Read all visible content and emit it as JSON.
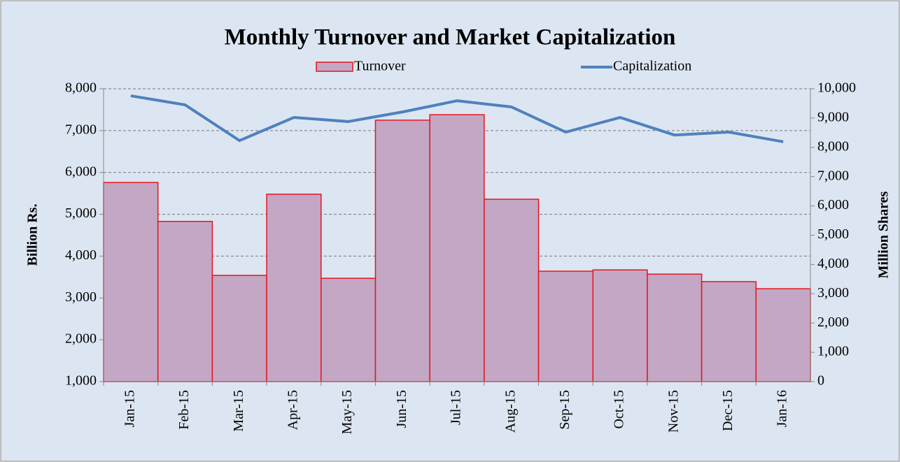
{
  "chart_data": {
    "type": "bar-line",
    "title": "Monthly Turnover and Market Capitalization",
    "y_label": "Billion Rs.",
    "y2_label": "Million Shares",
    "categories": [
      "Jan-15",
      "Feb-15",
      "Mar-15",
      "Apr-15",
      "May-15",
      "Jun-15",
      "Jul-15",
      "Aug-15",
      "Sep-15",
      "Oct-15",
      "Nov-15",
      "Dec-15",
      "Jan-16"
    ],
    "series": [
      {
        "name": "Turnover",
        "type": "bar",
        "color": "#c3a7c5",
        "edge_color": "#e8141c",
        "values": [
          5760,
          4830,
          3540,
          5480,
          3470,
          7250,
          7380,
          5360,
          3640,
          3670,
          3570,
          3390,
          3220
        ]
      },
      {
        "name": "Capitalization",
        "type": "line",
        "axis": "y2",
        "color": "#4f81bd",
        "values": [
          9760,
          9450,
          8230,
          9020,
          8880,
          9210,
          9590,
          9380,
          8520,
          9020,
          8420,
          8520,
          8190
        ]
      }
    ],
    "ylim": [
      1000,
      8000
    ],
    "yticks": [
      {
        "value": 1000,
        "label": "1,000"
      },
      {
        "value": 2000,
        "label": "2,000"
      },
      {
        "value": 3000,
        "label": "3,000"
      },
      {
        "value": 4000,
        "label": "4,000"
      },
      {
        "value": 5000,
        "label": "5,000"
      },
      {
        "value": 6000,
        "label": "6,000"
      },
      {
        "value": 7000,
        "label": "7,000"
      },
      {
        "value": 8000,
        "label": "8,000"
      }
    ],
    "y2lim": [
      0,
      10000
    ],
    "y2ticks": [
      0,
      {
        "value": 1000,
        "label": "1,000"
      },
      {
        "value": 2000,
        "label": "2,000"
      },
      {
        "value": 3000,
        "label": "3,000"
      },
      {
        "value": 4000,
        "label": "4,000"
      },
      {
        "value": 5000,
        "label": "5,000"
      },
      {
        "value": 6000,
        "label": "6,000"
      },
      {
        "value": 7000,
        "label": "7,000"
      },
      {
        "value": 8000,
        "label": "8,000"
      },
      {
        "value": 9000,
        "label": "9,000"
      },
      {
        "value": 10000,
        "label": "10,000"
      }
    ],
    "grid": true
  }
}
